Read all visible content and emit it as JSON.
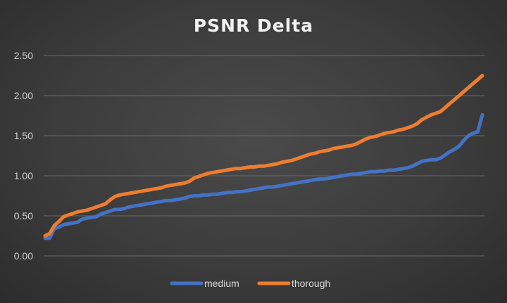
{
  "chart_data": {
    "type": "line",
    "title": "PSNR Delta",
    "xlabel": "",
    "ylabel": "",
    "ylim": [
      0,
      2.5
    ],
    "yticks": [
      "0.00",
      "0.50",
      "1.00",
      "1.50",
      "2.00",
      "2.50"
    ],
    "grid": true,
    "legend": "bottom",
    "series": [
      {
        "name": "medium",
        "color": "#4472C4",
        "values": [
          0.22,
          0.22,
          0.34,
          0.36,
          0.39,
          0.4,
          0.41,
          0.42,
          0.46,
          0.47,
          0.48,
          0.49,
          0.52,
          0.54,
          0.56,
          0.58,
          0.58,
          0.59,
          0.61,
          0.62,
          0.63,
          0.64,
          0.65,
          0.66,
          0.67,
          0.68,
          0.69,
          0.69,
          0.7,
          0.71,
          0.72,
          0.74,
          0.75,
          0.75,
          0.76,
          0.76,
          0.77,
          0.77,
          0.78,
          0.79,
          0.79,
          0.8,
          0.8,
          0.81,
          0.82,
          0.83,
          0.84,
          0.85,
          0.86,
          0.86,
          0.87,
          0.88,
          0.89,
          0.9,
          0.91,
          0.92,
          0.93,
          0.94,
          0.95,
          0.96,
          0.96,
          0.97,
          0.98,
          0.99,
          1.0,
          1.01,
          1.02,
          1.02,
          1.03,
          1.04,
          1.05,
          1.05,
          1.06,
          1.06,
          1.07,
          1.07,
          1.08,
          1.09,
          1.1,
          1.12,
          1.15,
          1.18,
          1.19,
          1.2,
          1.2,
          1.22,
          1.26,
          1.3,
          1.33,
          1.37,
          1.44,
          1.5,
          1.53,
          1.55,
          1.76
        ]
      },
      {
        "name": "thorough",
        "color": "#ED7D31",
        "values": [
          0.25,
          0.28,
          0.38,
          0.43,
          0.49,
          0.51,
          0.53,
          0.55,
          0.56,
          0.57,
          0.59,
          0.61,
          0.63,
          0.65,
          0.7,
          0.74,
          0.76,
          0.77,
          0.78,
          0.79,
          0.8,
          0.81,
          0.82,
          0.83,
          0.84,
          0.85,
          0.87,
          0.88,
          0.89,
          0.9,
          0.91,
          0.93,
          0.97,
          0.99,
          1.01,
          1.03,
          1.04,
          1.05,
          1.06,
          1.07,
          1.08,
          1.09,
          1.09,
          1.1,
          1.11,
          1.11,
          1.12,
          1.12,
          1.13,
          1.14,
          1.15,
          1.17,
          1.18,
          1.19,
          1.21,
          1.23,
          1.25,
          1.27,
          1.28,
          1.3,
          1.31,
          1.32,
          1.34,
          1.35,
          1.36,
          1.37,
          1.38,
          1.4,
          1.43,
          1.46,
          1.48,
          1.49,
          1.51,
          1.53,
          1.54,
          1.55,
          1.57,
          1.58,
          1.6,
          1.62,
          1.65,
          1.7,
          1.73,
          1.76,
          1.78,
          1.8,
          1.85,
          1.9,
          1.95,
          2.0,
          2.05,
          2.1,
          2.15,
          2.2,
          2.25
        ]
      }
    ]
  }
}
